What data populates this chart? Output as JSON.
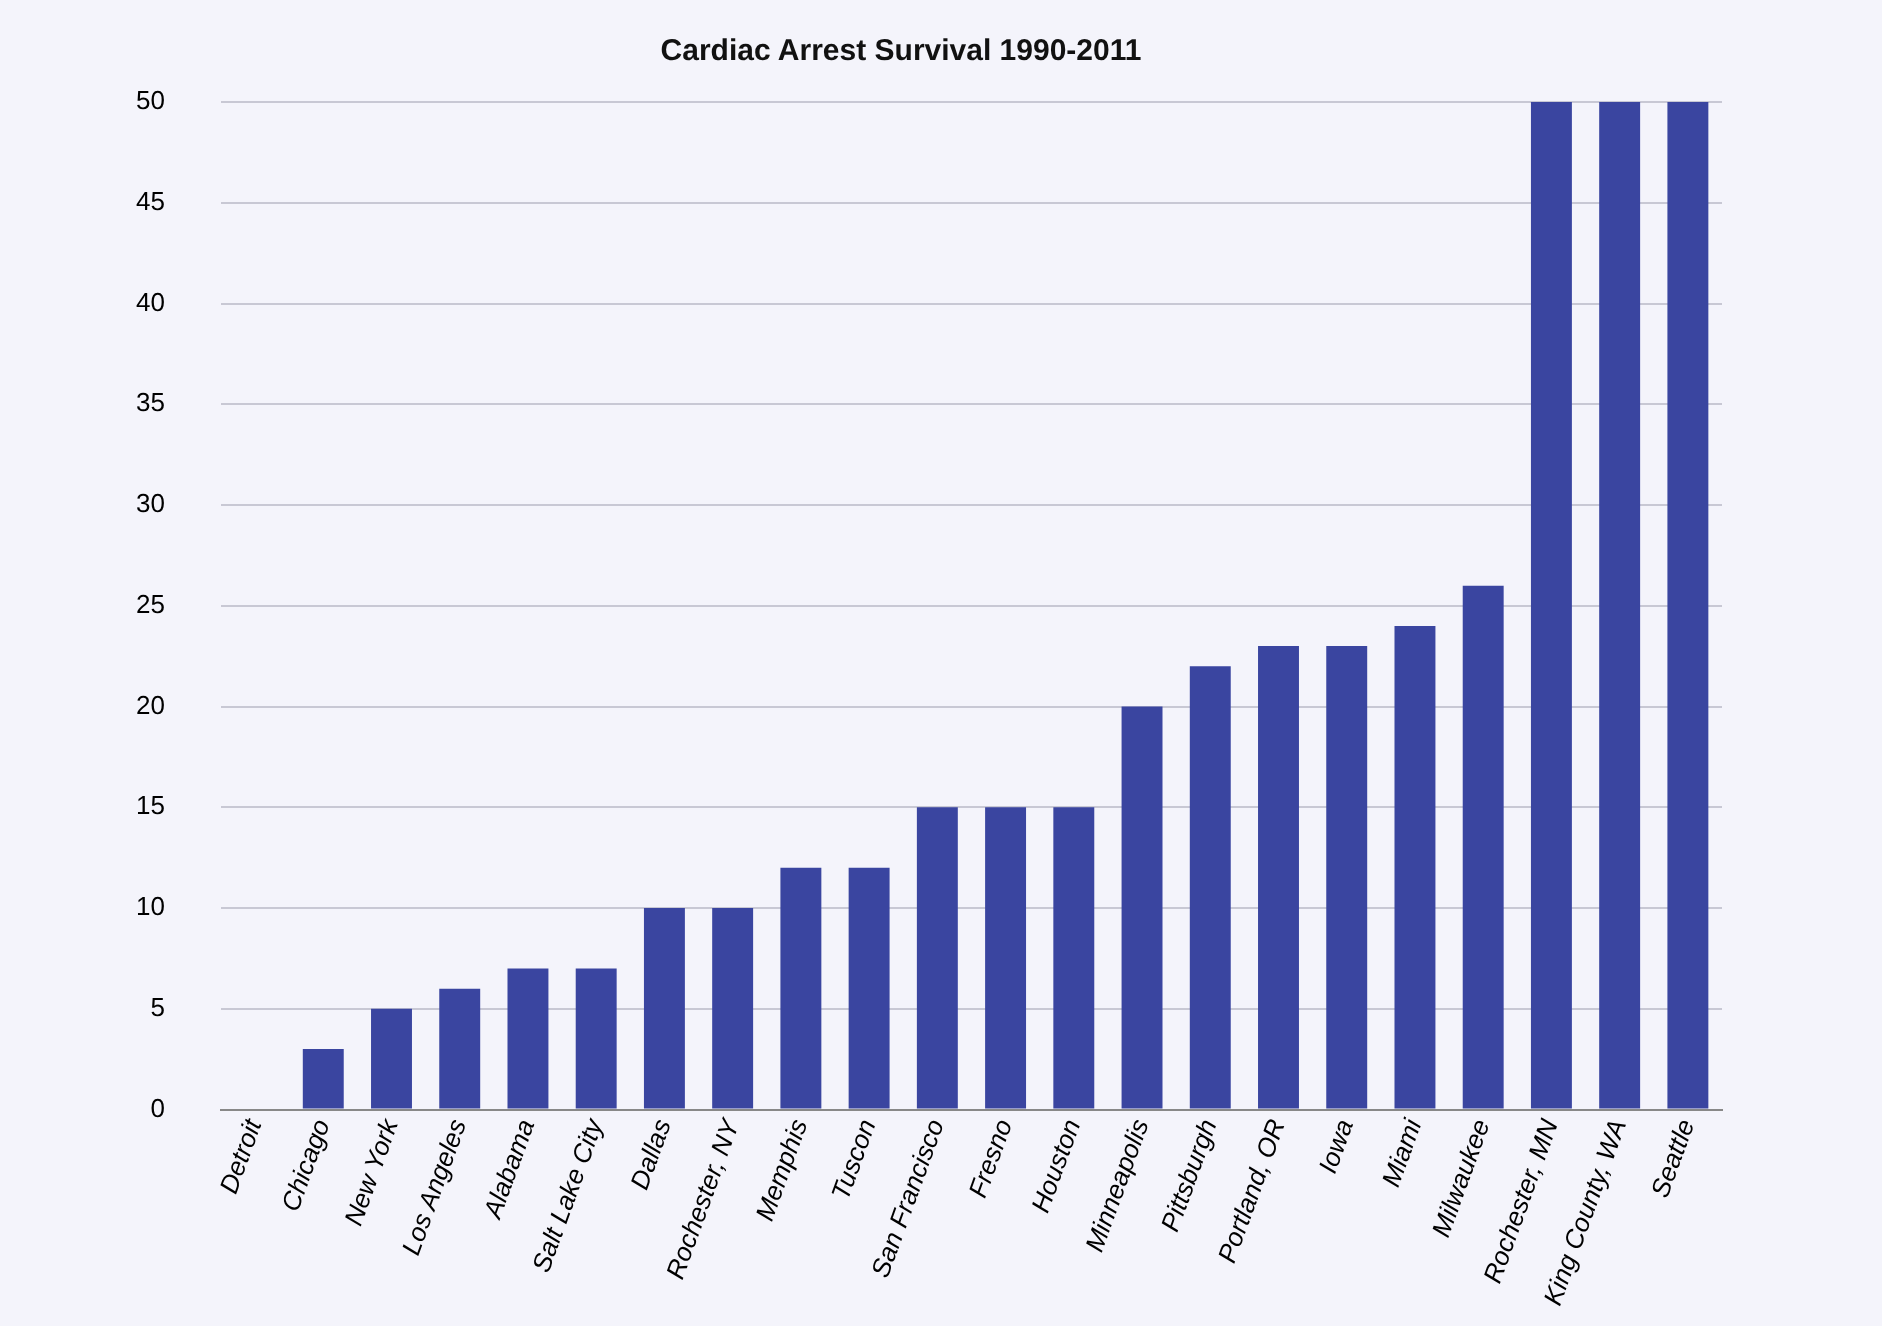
{
  "chart_data": {
    "type": "bar",
    "title": "Cardiac Arrest Survival 1990-2011",
    "categories": [
      "Detroit",
      "Chicago",
      "New York",
      "Los Angeles",
      "Alabama",
      "Salt Lake City",
      "Dallas",
      "Rochester, NY",
      "Memphis",
      "Tuscon",
      "San Francisco",
      "Fresno",
      "Houston",
      "Minneapolis",
      "Pittsburgh",
      "Portland, OR",
      "Iowa",
      "Miami",
      "Milwaukee",
      "Rochester, MN",
      "King County, WA",
      "Seattle"
    ],
    "values": [
      0,
      3,
      5,
      6,
      7,
      7,
      10,
      10,
      12,
      12,
      15,
      15,
      15,
      20,
      22,
      23,
      23,
      24,
      26,
      50,
      50,
      50
    ],
    "color": "#3a45a0",
    "ylim": [
      0,
      50
    ],
    "yticks": [
      0,
      5,
      10,
      15,
      20,
      25,
      30,
      35,
      40,
      45,
      50
    ],
    "grid": "y"
  }
}
